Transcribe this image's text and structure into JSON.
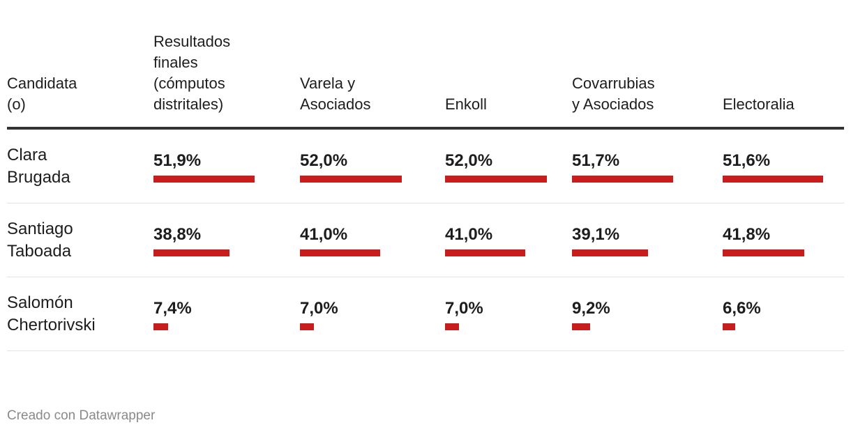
{
  "chart_data": {
    "type": "table",
    "columns": [
      "Candidata\n(o)",
      "Resultados\nfinales\n(cómputos\ndistritales)",
      "Varela y\nAsociados",
      "Enkoll",
      "Covarrubias\ny Asociados",
      "Electoralia"
    ],
    "rows": [
      {
        "candidate": "Clara\nBrugada",
        "labels": [
          "51,9%",
          "52,0%",
          "52,0%",
          "51,7%",
          "51,6%"
        ],
        "values": [
          51.9,
          52.0,
          52.0,
          51.7,
          51.6
        ]
      },
      {
        "candidate": "Santiago\nTaboada",
        "labels": [
          "38,8%",
          "41,0%",
          "41,0%",
          "39,1%",
          "41,8%"
        ],
        "values": [
          38.8,
          41.0,
          41.0,
          39.1,
          41.8
        ]
      },
      {
        "candidate": "Salomón\nChertorivski",
        "labels": [
          "7,4%",
          "7,0%",
          "7,0%",
          "9,2%",
          "6,6%"
        ],
        "values": [
          7.4,
          7.0,
          7.0,
          9.2,
          6.6
        ]
      }
    ],
    "bar_color": "#c71e1d"
  },
  "footer": "Creado con Datawrapper"
}
